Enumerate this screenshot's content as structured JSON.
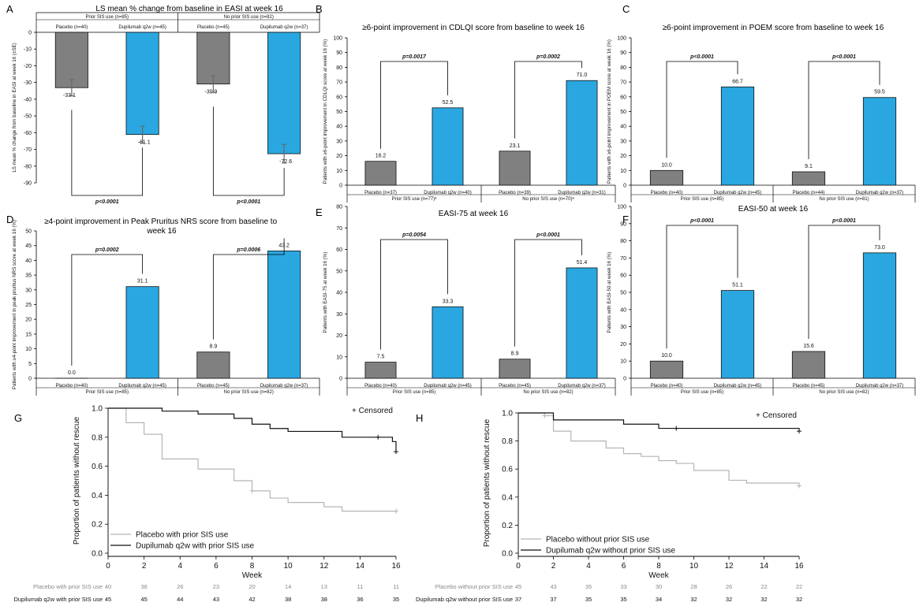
{
  "colors": {
    "placebo": "#808080",
    "dupilumab": "#2aa7e0",
    "km_placebo": "#b5b5b5",
    "km_dupilumab": "#111111",
    "frame": "#000000"
  },
  "panels": {
    "A": {
      "letter": "A",
      "title": "LS mean % change from baseline in EASI at week 16"
    },
    "B": {
      "letter": "B",
      "title": "≥6-point improvement in CDLQI score from baseline to week 16"
    },
    "C": {
      "letter": "C",
      "title": "≥6-point improvement in POEM score from baseline to week 16"
    },
    "D": {
      "letter": "D",
      "title": "≥4-point improvement in Peak Pruritus NRS score from baseline to week 16"
    },
    "E": {
      "letter": "E",
      "title": "EASI-75 at week 16"
    },
    "F": {
      "letter": "F",
      "title": "EASI-50 at week 16"
    },
    "G": {
      "letter": "G"
    },
    "H": {
      "letter": "H"
    }
  },
  "chart_data": [
    {
      "id": "A",
      "type": "bar",
      "title": "LS mean % change from baseline in EASI at week 16",
      "ylabel": "LS mean % change from baseline in EASI at week 16 (±SE)",
      "ylim": [
        -90,
        0
      ],
      "yticks": [
        0,
        -10,
        -20,
        -30,
        -40,
        -50,
        -60,
        -70,
        -80,
        -90
      ],
      "groups": [
        "Prior SIS use (n=85)",
        "No prior SIS use (n=82)"
      ],
      "categories": [
        "Placebo (n=40)",
        "Dupilumab q2w (n=45)",
        "Placebo (n=45)",
        "Dupilumab q2w (n=37)"
      ],
      "values": [
        -33.1,
        -61.1,
        -30.9,
        -72.6
      ],
      "value_labels": [
        "-33.1",
        "-61.1",
        "-30.9",
        "-72.6"
      ],
      "error": [
        4.8,
        5.0,
        5.0,
        5.6
      ],
      "comparisons": [
        "p<0.0001",
        "p<0.0001"
      ]
    },
    {
      "id": "B",
      "type": "bar",
      "title": "≥6-point improvement in CDLQI score from baseline to week 16",
      "ylabel": "Patients with ≥6-point improvement in CDLQI score at week 16 (%)",
      "ylim": [
        0,
        100
      ],
      "yticks": [
        0,
        10,
        20,
        30,
        40,
        50,
        60,
        70,
        80,
        90,
        100
      ],
      "groups": [
        "Prior SIS use (n=77)ᵃ",
        "No prior SIS use (n=70)ᵃ"
      ],
      "categories": [
        "Placebo (n=37)",
        "Dupilumab q2w (n=40)",
        "Placebo (n=39)",
        "Dupilumab q2w (n=31)"
      ],
      "values": [
        16.2,
        52.5,
        23.1,
        71.0
      ],
      "value_labels": [
        "16.2",
        "52.5",
        "23.1",
        "71.0"
      ],
      "comparisons": [
        "p=0.0017",
        "p=0.0002"
      ]
    },
    {
      "id": "C",
      "type": "bar",
      "title": "≥6-point improvement in POEM score from baseline to week 16",
      "ylabel": "Patients with ≥6-point improvement in POEM score at week 16 (%)",
      "ylim": [
        0,
        100
      ],
      "yticks": [
        0,
        10,
        20,
        30,
        40,
        50,
        60,
        70,
        80,
        90,
        100
      ],
      "groups": [
        "Prior SIS use (n=85)",
        "No prior SIS use (n=81)"
      ],
      "categories": [
        "Placebo (n=40)",
        "Dupilumab q2w (n=45)",
        "Placebo (n=44)",
        "Dupilumab q2w (n=37)"
      ],
      "values": [
        10.0,
        66.7,
        9.1,
        59.5
      ],
      "value_labels": [
        "10.0",
        "66.7",
        "9.1",
        "59.5"
      ],
      "comparisons": [
        "p<0.0001",
        "p<0.0001"
      ]
    },
    {
      "id": "D",
      "type": "bar",
      "title": "≥4-point improvement in Peak Pruritus NRS score from baseline to week 16",
      "ylabel": "Patients with ≥4-point improvement in peak pruritus NRS score at week 16 (%)",
      "ylim": [
        0,
        50
      ],
      "yticks": [
        0,
        5,
        10,
        15,
        20,
        25,
        30,
        35,
        40,
        45,
        50
      ],
      "groups": [
        "Prior SIS use (n=85)",
        "No prior SIS use (n=82)"
      ],
      "categories": [
        "Placebo (n=40)",
        "Dupilumab q2w (n=45)",
        "Placebo (n=45)",
        "Dupilumab q2w (n=37)"
      ],
      "values": [
        0.0,
        31.1,
        8.9,
        43.2
      ],
      "value_labels": [
        "0.0",
        "31.1",
        "8.9",
        "43.2"
      ],
      "comparisons": [
        "p=0.0002",
        "p=0.0006"
      ]
    },
    {
      "id": "E",
      "type": "bar",
      "title": "EASI-75 at week 16",
      "ylabel": "Patients with EASI-75 at week 16 (%)",
      "ylim": [
        0,
        80
      ],
      "yticks": [
        0,
        10,
        20,
        30,
        40,
        50,
        60,
        70,
        80
      ],
      "groups": [
        "Prior SIS use (n=85)",
        "No prior SIS use (n=82)"
      ],
      "categories": [
        "Placebo (n=40)",
        "Dupilumab q2w (n=45)",
        "Placebo (n=45)",
        "Dupilumab q2w (n=37)"
      ],
      "values": [
        7.5,
        33.3,
        8.9,
        51.4
      ],
      "value_labels": [
        "7.5",
        "33.3",
        "8.9",
        "51.4"
      ],
      "comparisons": [
        "p=0.0054",
        "p<0.0001"
      ]
    },
    {
      "id": "F",
      "type": "bar",
      "title": "EASI-50 at week 16",
      "ylabel": "Patients with EASI-50 at week 16 (%)",
      "ylim": [
        0,
        100
      ],
      "yticks": [
        0,
        10,
        20,
        30,
        40,
        50,
        60,
        70,
        80,
        90,
        100
      ],
      "groups": [
        "Prior SIS use (n=85)",
        "No prior SIS use (n=82)"
      ],
      "categories": [
        "Placebo (n=40)",
        "Dupilumab q2w (n=45)",
        "Placebo (n=45)",
        "Dupilumab q2w (n=37)"
      ],
      "values": [
        10.0,
        51.1,
        15.6,
        73.0
      ],
      "value_labels": [
        "10.0",
        "51.1",
        "15.6",
        "73.0"
      ],
      "comparisons": [
        "p<0.0001",
        "p<0.0001"
      ]
    },
    {
      "id": "G",
      "type": "line",
      "xlabel": "Week",
      "ylabel": "Proportion of patients without rescue",
      "xlim": [
        0,
        16
      ],
      "ylim": [
        0,
        1.0
      ],
      "xticks": [
        0,
        2,
        4,
        6,
        8,
        10,
        12,
        14,
        16
      ],
      "yticks": [
        "0.0",
        "0.2",
        "0.4",
        "0.6",
        "0.8",
        "1.0"
      ],
      "censored_label": "+ Censored",
      "series": [
        {
          "name": "Placebo with prior SIS use",
          "color_key": "km_placebo",
          "steps": [
            [
              0,
              1.0
            ],
            [
              1,
              0.9
            ],
            [
              2,
              0.82
            ],
            [
              3,
              0.65
            ],
            [
              5,
              0.58
            ],
            [
              7,
              0.5
            ],
            [
              8,
              0.43
            ],
            [
              9,
              0.38
            ],
            [
              10,
              0.35
            ],
            [
              12,
              0.32
            ],
            [
              13,
              0.29
            ],
            [
              16,
              0.29
            ]
          ],
          "censored": [
            [
              8,
              0.43
            ],
            [
              16,
              0.29
            ]
          ]
        },
        {
          "name": "Dupilumab q2w with prior SIS use",
          "color_key": "km_dupilumab",
          "steps": [
            [
              0,
              1.0
            ],
            [
              3,
              0.98
            ],
            [
              5,
              0.96
            ],
            [
              7,
              0.93
            ],
            [
              8,
              0.89
            ],
            [
              9,
              0.86
            ],
            [
              10,
              0.84
            ],
            [
              13,
              0.8
            ],
            [
              15.8,
              0.77
            ],
            [
              16,
              0.7
            ]
          ],
          "censored": [
            [
              15,
              0.8
            ],
            [
              16,
              0.7
            ]
          ]
        }
      ],
      "at_risk": [
        {
          "label": "Placebo with prior SIS use",
          "values": [
            "40",
            "36",
            "26",
            "23",
            "20",
            "14",
            "13",
            "11",
            "11"
          ]
        },
        {
          "label": "Dupilumab q2w with prior SIS use",
          "values": [
            "45",
            "45",
            "44",
            "43",
            "42",
            "38",
            "38",
            "36",
            "35"
          ]
        }
      ]
    },
    {
      "id": "H",
      "type": "line",
      "xlabel": "Week",
      "ylabel": "Proportion of patients without rescue",
      "xlim": [
        0,
        16
      ],
      "ylim": [
        0,
        1.0
      ],
      "xticks": [
        0,
        2,
        4,
        6,
        8,
        10,
        12,
        14,
        16
      ],
      "yticks": [
        "0.0",
        "0.2",
        "0.4",
        "0.6",
        "0.8",
        "1.0"
      ],
      "censored_label": "+ Censored",
      "series": [
        {
          "name": "Placebo without prior SIS use",
          "color_key": "km_placebo",
          "steps": [
            [
              0,
              1.0
            ],
            [
              1.5,
              0.98
            ],
            [
              2,
              0.87
            ],
            [
              3,
              0.8
            ],
            [
              5,
              0.75
            ],
            [
              6,
              0.71
            ],
            [
              7,
              0.69
            ],
            [
              8,
              0.66
            ],
            [
              9,
              0.64
            ],
            [
              10,
              0.59
            ],
            [
              12,
              0.52
            ],
            [
              13,
              0.5
            ],
            [
              16,
              0.48
            ]
          ],
          "censored": [
            [
              1.5,
              0.98
            ],
            [
              16,
              0.48
            ]
          ]
        },
        {
          "name": "Dupilumab q2w without prior SIS use",
          "color_key": "km_dupilumab",
          "steps": [
            [
              0,
              1.0
            ],
            [
              2,
              0.95
            ],
            [
              6,
              0.92
            ],
            [
              8,
              0.89
            ],
            [
              16,
              0.87
            ]
          ],
          "censored": [
            [
              9,
              0.89
            ],
            [
              16,
              0.87
            ]
          ]
        }
      ],
      "at_risk": [
        {
          "label": "Placebo without prior SIS use",
          "values": [
            "45",
            "43",
            "35",
            "33",
            "30",
            "28",
            "26",
            "22",
            "22"
          ]
        },
        {
          "label": "Dupilumab q2w without prior SIS use",
          "values": [
            "37",
            "37",
            "35",
            "35",
            "34",
            "32",
            "32",
            "32",
            "32"
          ]
        }
      ]
    }
  ]
}
